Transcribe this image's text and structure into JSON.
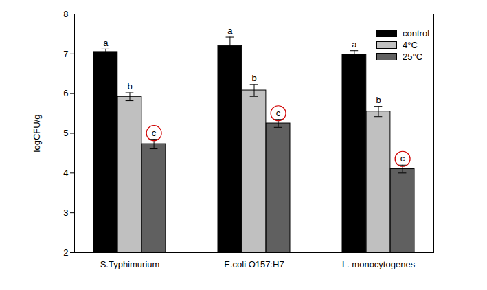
{
  "chart_data": {
    "type": "bar",
    "y_label": "logCFU/g",
    "categories": [
      "S.Typhimurium",
      "E.coli O157:H7",
      "L. monocytogenes"
    ],
    "ylim": [
      2,
      8
    ],
    "yticks": [
      2,
      3,
      4,
      5,
      6,
      7,
      8
    ],
    "legend": "top-right",
    "series": [
      {
        "name": "control",
        "color": "#000000",
        "values": [
          7.05,
          7.2,
          6.98
        ],
        "errors": [
          0.07,
          0.22,
          0.1
        ],
        "letters": [
          "a",
          "a",
          "a"
        ]
      },
      {
        "name": "4°C",
        "color": "#c0c0c0",
        "values": [
          5.92,
          6.08,
          5.55
        ],
        "errors": [
          0.1,
          0.15,
          0.13
        ],
        "letters": [
          "b",
          "b",
          "b"
        ]
      },
      {
        "name": "25°C",
        "color": "#606060",
        "values": [
          4.73,
          5.25,
          4.1
        ],
        "errors": [
          0.12,
          0.1,
          0.1
        ],
        "letters": [
          "c",
          "c",
          "c"
        ],
        "marker": "circle"
      }
    ]
  }
}
